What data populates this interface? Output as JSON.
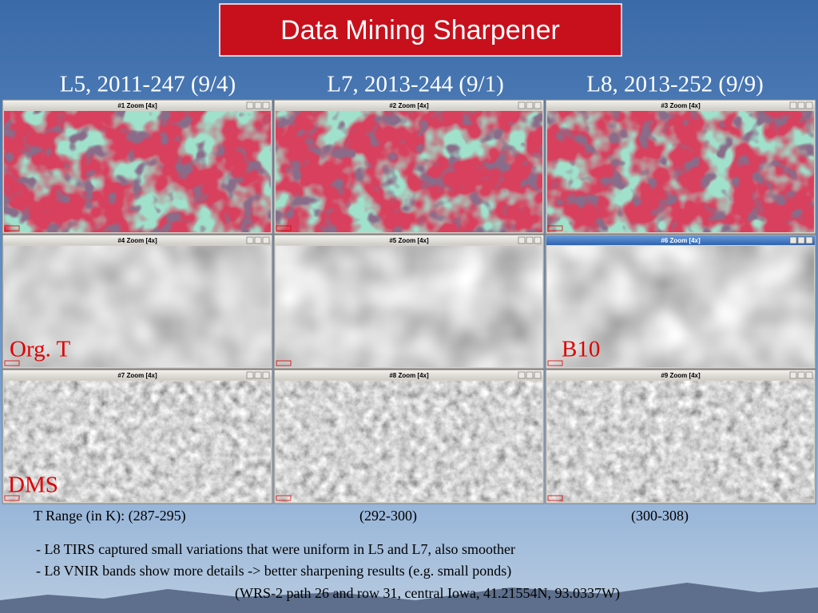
{
  "title": "Data Mining Sharpener",
  "column_headers": [
    "L5, 2011-247 (9/4)",
    "L7, 2013-244 (9/1)",
    "L8, 2013-252 (9/9)"
  ],
  "windows": [
    {
      "title": "#1 Zoom [4x]"
    },
    {
      "title": "#2 Zoom [4x]"
    },
    {
      "title": "#3 Zoom [4x]"
    },
    {
      "title": "#4 Zoom [4x]"
    },
    {
      "title": "#5 Zoom [4x]"
    },
    {
      "title": "#6 Zoom [4x]"
    },
    {
      "title": "#7 Zoom [4x]"
    },
    {
      "title": "#8 Zoom [4x]"
    },
    {
      "title": "#9 Zoom [4x]"
    }
  ],
  "overlay_labels": [
    "Org. T",
    "B10",
    "DMS"
  ],
  "t_range": [
    "T Range (in K): (287-295)",
    "(292-300)",
    "(300-308)"
  ],
  "notes": [
    "- L8 TIRS captured small variations that were uniform in L5 and L7, also smoother",
    "- L8 VNIR bands show more details -> better sharpening results (e.g. small ponds)"
  ],
  "footnote": "(WRS-2 path 26 and row 31, central Iowa, 41.21554N, 93.0337W)"
}
